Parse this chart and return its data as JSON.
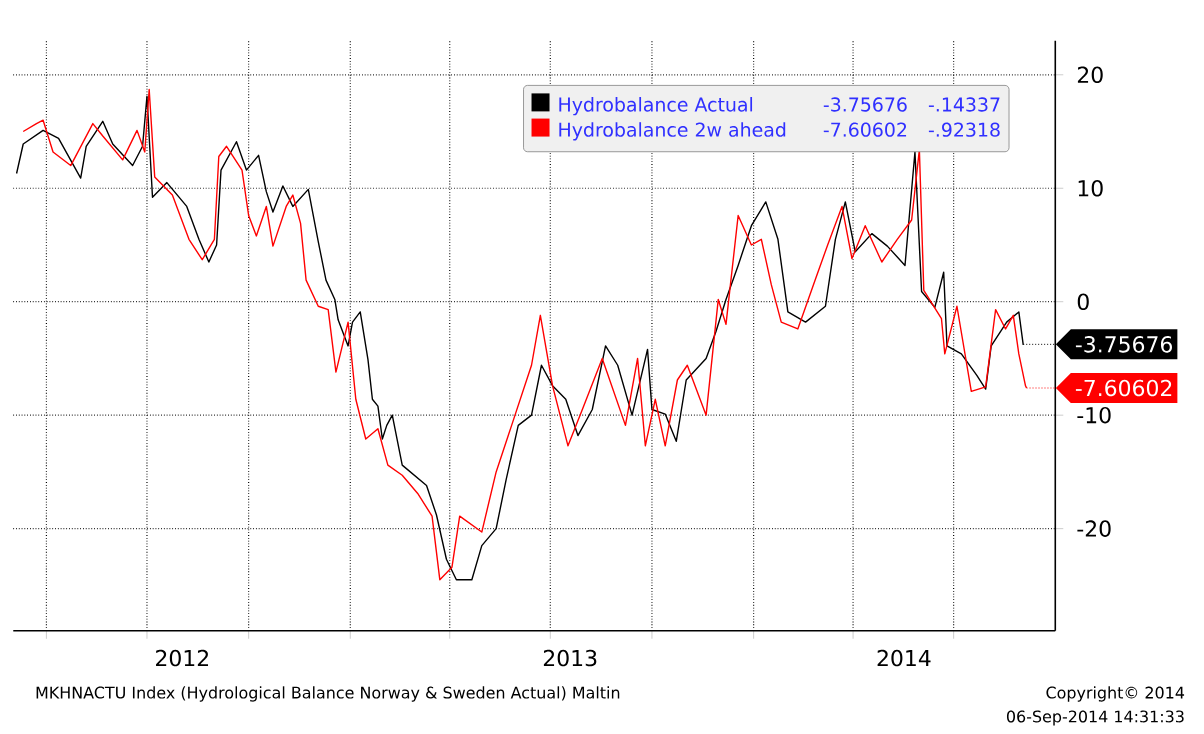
{
  "chart_data": {
    "type": "line",
    "series": [
      {
        "name": "Hydrobalance Actual",
        "color": "#000000",
        "x": [
          "2012-03-05",
          "2012-03-11",
          "2012-03-29",
          "2012-04-12",
          "2012-05-02",
          "2012-05-07",
          "2012-05-22",
          "2012-05-31",
          "2012-06-18",
          "2012-06-27",
          "2012-07-01",
          "2012-07-06",
          "2012-07-19",
          "2012-08-06",
          "2012-08-17",
          "2012-08-26",
          "2012-09-02",
          "2012-09-06",
          "2012-09-20",
          "2012-09-29",
          "2012-10-10",
          "2012-10-17",
          "2012-10-23",
          "2012-11-01",
          "2012-11-10",
          "2012-11-24",
          "2012-12-03",
          "2012-12-10",
          "2012-12-18",
          "2012-12-21",
          "2012-12-30",
          "2013-01-03",
          "2013-01-10",
          "2013-01-17",
          "2013-01-21",
          "2013-01-26",
          "2013-01-30",
          "2013-02-03",
          "2013-02-08",
          "2013-02-17",
          "2013-03-11",
          "2013-03-20",
          "2013-03-29",
          "2013-04-07",
          "2013-04-21",
          "2013-04-30",
          "2013-05-13",
          "2013-05-22",
          "2013-06-02",
          "2013-06-14",
          "2013-06-23",
          "2013-07-03",
          "2013-07-15",
          "2013-07-26",
          "2013-08-08",
          "2013-08-20",
          "2013-08-31",
          "2013-09-13",
          "2013-09-27",
          "2013-10-01",
          "2013-10-13",
          "2013-10-23",
          "2013-11-01",
          "2013-11-19",
          "2013-11-28",
          "2013-12-07",
          "2013-12-18",
          "2013-12-30",
          "2014-01-12",
          "2014-01-23",
          "2014-02-01",
          "2014-02-17",
          "2014-03-07",
          "2014-03-16",
          "2014-03-25",
          "2014-04-03",
          "2014-04-18",
          "2014-05-02",
          "2014-05-18",
          "2014-05-27",
          "2014-06-02",
          "2014-06-14",
          "2014-06-22",
          "2014-06-25",
          "2014-07-08",
          "2014-07-22",
          "2014-07-30",
          "2014-08-04",
          "2014-08-18",
          "2014-08-29",
          "2014-09-02"
        ],
        "values": [
          11.3,
          13.9,
          15.1,
          14.4,
          10.9,
          13.7,
          15.9,
          13.9,
          12.0,
          13.7,
          18.1,
          9.2,
          10.5,
          8.4,
          5.5,
          3.5,
          5.0,
          11.6,
          14.1,
          11.6,
          12.9,
          9.7,
          7.9,
          10.2,
          8.4,
          9.9,
          5.3,
          1.9,
          0.2,
          -1.6,
          -3.9,
          -1.8,
          -0.9,
          -5.1,
          -8.6,
          -9.2,
          -12.1,
          -10.9,
          -10.0,
          -14.4,
          -16.2,
          -18.8,
          -22.7,
          -24.5,
          -24.5,
          -21.5,
          -20.0,
          -15.7,
          -10.9,
          -10.0,
          -5.6,
          -7.4,
          -8.6,
          -11.8,
          -9.5,
          -3.9,
          -5.6,
          -10.0,
          -4.2,
          -9.5,
          -9.9,
          -12.3,
          -6.9,
          -5.0,
          -2.6,
          0.2,
          3.2,
          6.7,
          8.8,
          5.5,
          -0.9,
          -1.8,
          -0.4,
          5.5,
          8.8,
          4.4,
          6.0,
          4.9,
          3.2,
          13.2,
          0.9,
          -0.5,
          2.6,
          -3.9,
          -4.6,
          -6.5,
          -7.7,
          -3.9,
          -1.8,
          -0.9,
          -3.8
        ]
      },
      {
        "name": "Hydrobalance 2w ahead",
        "color": "#ff0000",
        "x": [
          "2012-03-11",
          "2012-03-23",
          "2012-03-29",
          "2012-04-07",
          "2012-04-23",
          "2012-05-13",
          "2012-05-22",
          "2012-06-09",
          "2012-06-22",
          "2012-06-29",
          "2012-07-03",
          "2012-07-08",
          "2012-07-24",
          "2012-08-08",
          "2012-08-20",
          "2012-08-31",
          "2012-09-04",
          "2012-09-11",
          "2012-09-25",
          "2012-10-01",
          "2012-10-08",
          "2012-10-17",
          "2012-10-23",
          "2012-11-04",
          "2012-11-10",
          "2012-11-17",
          "2012-11-22",
          "2012-12-03",
          "2012-12-12",
          "2012-12-19",
          "2012-12-30",
          "2013-01-06",
          "2013-01-15",
          "2013-01-26",
          "2013-02-04",
          "2013-02-17",
          "2013-03-03",
          "2013-03-16",
          "2013-03-23",
          "2013-04-03",
          "2013-04-10",
          "2013-04-30",
          "2013-05-13",
          "2013-05-27",
          "2013-06-14",
          "2013-06-22",
          "2013-07-03",
          "2013-07-17",
          "2013-07-30",
          "2013-08-17",
          "2013-09-07",
          "2013-09-18",
          "2013-09-25",
          "2013-10-04",
          "2013-10-13",
          "2013-10-24",
          "2013-11-02",
          "2013-11-19",
          "2013-11-30",
          "2013-12-07",
          "2013-12-18",
          "2013-12-30",
          "2014-01-08",
          "2014-01-17",
          "2014-01-26",
          "2014-02-10",
          "2014-02-26",
          "2014-03-09",
          "2014-03-22",
          "2014-03-31",
          "2014-04-12",
          "2014-04-27",
          "2014-05-11",
          "2014-05-24",
          "2014-05-31",
          "2014-06-04",
          "2014-06-20",
          "2014-06-23",
          "2014-07-04",
          "2014-07-17",
          "2014-07-30",
          "2014-08-08",
          "2014-08-17",
          "2014-08-24",
          "2014-08-29",
          "2014-09-04",
          "2014-09-05"
        ],
        "values": [
          15.0,
          15.7,
          16.0,
          13.2,
          12.0,
          15.7,
          14.6,
          12.5,
          15.1,
          13.2,
          18.7,
          11.0,
          9.4,
          5.5,
          3.7,
          5.5,
          12.8,
          13.7,
          11.6,
          7.6,
          5.8,
          8.4,
          4.9,
          8.4,
          9.4,
          6.9,
          1.9,
          -0.4,
          -0.7,
          -6.2,
          -1.8,
          -8.6,
          -12.1,
          -11.2,
          -14.4,
          -15.3,
          -16.9,
          -18.9,
          -24.5,
          -23.4,
          -18.9,
          -20.3,
          -15.0,
          -10.9,
          -5.6,
          -1.2,
          -7.4,
          -12.7,
          -9.5,
          -5.0,
          -10.9,
          -5.0,
          -12.7,
          -8.6,
          -12.7,
          -6.9,
          -5.6,
          -10.0,
          0.2,
          -2.0,
          7.6,
          5.0,
          5.5,
          1.5,
          -1.8,
          -2.4,
          2.0,
          5.0,
          8.4,
          3.8,
          6.7,
          3.5,
          5.5,
          7.2,
          13.4,
          1.0,
          -1.5,
          -4.6,
          -0.4,
          -7.9,
          -7.5,
          -0.7,
          -2.4,
          -1.2,
          -4.6,
          -7.4,
          -7.6
        ]
      }
    ],
    "xlim": [
      "2012-03-02",
      "2014-10-01"
    ],
    "xticks": [
      {
        "value": "2012-04-01",
        "label": null
      },
      {
        "value": "2012-07-01",
        "label": null
      },
      {
        "value": "2012-10-01",
        "label": null
      },
      {
        "value": "2013-01-01",
        "label": null
      },
      {
        "value": "2013-04-01",
        "label": null
      },
      {
        "value": "2013-07-01",
        "label": null
      },
      {
        "value": "2013-10-01",
        "label": null
      },
      {
        "value": "2014-01-01",
        "label": null
      },
      {
        "value": "2014-04-01",
        "label": null
      },
      {
        "value": "2014-07-01",
        "label": null
      },
      {
        "value": "2012-08-02",
        "label": "2012"
      },
      {
        "value": "2013-07-19",
        "label": "2013"
      },
      {
        "value": "2014-05-17",
        "label": "2014"
      }
    ],
    "ylim": [
      -29,
      23
    ],
    "yticks": [
      -20,
      -10,
      0,
      10,
      20
    ],
    "grid": true,
    "legend": "top right",
    "line_style": "solid",
    "annotations": [
      "-3.75676",
      "-.14337",
      "-7.60602",
      "-.92318",
      {
        "text": "-3.75676",
        "x": "2014-09-02",
        "y": -3.75676
      },
      {
        "text": "-7.60602",
        "x": "2014-09-05",
        "y": -7.60602
      },
      "MKHNACTU Index (Hydrological Balance Norway & Sweden Actual) Maltin",
      "Copyright© 2014",
      "06-Sep-2014 14:31:33"
    ]
  }
}
